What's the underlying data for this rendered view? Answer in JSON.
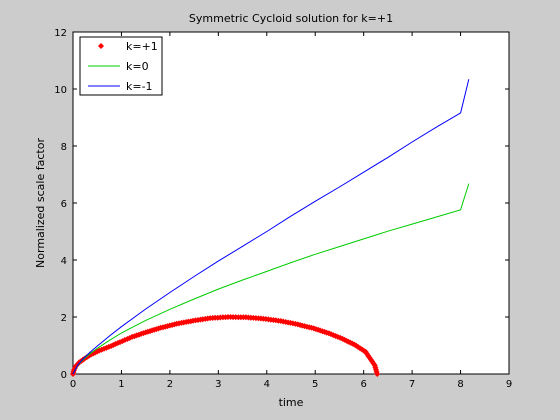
{
  "chart_data": {
    "type": "line",
    "title": "Symmetric Cycloid solution for k=+1",
    "xlabel": "time",
    "ylabel": "Normalized scale factor",
    "xlim": [
      0,
      9
    ],
    "ylim": [
      0,
      12
    ],
    "xticks": [
      "0",
      "1",
      "2",
      "3",
      "4",
      "5",
      "6",
      "7",
      "8",
      "9"
    ],
    "yticks": [
      "0",
      "2",
      "4",
      "6",
      "8",
      "10",
      "12"
    ],
    "grid": false,
    "legend": "top-left",
    "series": [
      {
        "name": "k=+1",
        "style": "markers",
        "color": "#ff0000",
        "x": [
          0.0,
          0.02,
          0.06,
          0.13,
          0.24,
          0.37,
          0.54,
          0.74,
          0.97,
          1.22,
          1.5,
          1.81,
          2.14,
          2.48,
          2.83,
          3.2,
          3.57,
          3.93,
          4.29,
          4.64,
          4.97,
          5.28,
          5.56,
          5.81,
          6.04,
          6.23,
          6.28
        ],
        "y": [
          0.0,
          0.14,
          0.28,
          0.41,
          0.54,
          0.68,
          0.82,
          0.95,
          1.12,
          1.3,
          1.46,
          1.62,
          1.76,
          1.87,
          1.96,
          2.0,
          1.99,
          1.94,
          1.86,
          1.74,
          1.6,
          1.43,
          1.24,
          1.03,
          0.78,
          0.3,
          0.0
        ]
      },
      {
        "name": "k=0",
        "style": "line",
        "color": "#00cc00",
        "x": [
          0.0,
          0.1,
          0.2,
          0.35,
          0.5,
          0.75,
          1.0,
          1.5,
          2.0,
          2.5,
          3.0,
          3.5,
          4.0,
          4.5,
          5.0,
          5.5,
          6.0,
          6.5,
          7.0,
          7.5,
          8.0,
          8.17
        ],
        "y": [
          0.0,
          0.31,
          0.49,
          0.71,
          0.9,
          1.18,
          1.44,
          1.88,
          2.27,
          2.63,
          2.98,
          3.3,
          3.6,
          3.91,
          4.2,
          4.47,
          4.74,
          5.01,
          5.26,
          5.51,
          5.76,
          6.68
        ]
      },
      {
        "name": "k=-1",
        "style": "line",
        "color": "#0000ff",
        "x": [
          0.0,
          0.1,
          0.2,
          0.35,
          0.5,
          0.75,
          1.0,
          1.5,
          2.0,
          2.5,
          3.0,
          3.5,
          4.0,
          4.5,
          5.0,
          5.5,
          6.0,
          6.5,
          7.0,
          7.5,
          8.0,
          8.17
        ],
        "y": [
          0.0,
          0.32,
          0.52,
          0.76,
          0.98,
          1.33,
          1.66,
          2.28,
          2.86,
          3.42,
          3.96,
          4.48,
          5.0,
          5.54,
          6.06,
          6.56,
          7.08,
          7.6,
          8.14,
          8.66,
          9.16,
          10.34
        ]
      }
    ]
  }
}
